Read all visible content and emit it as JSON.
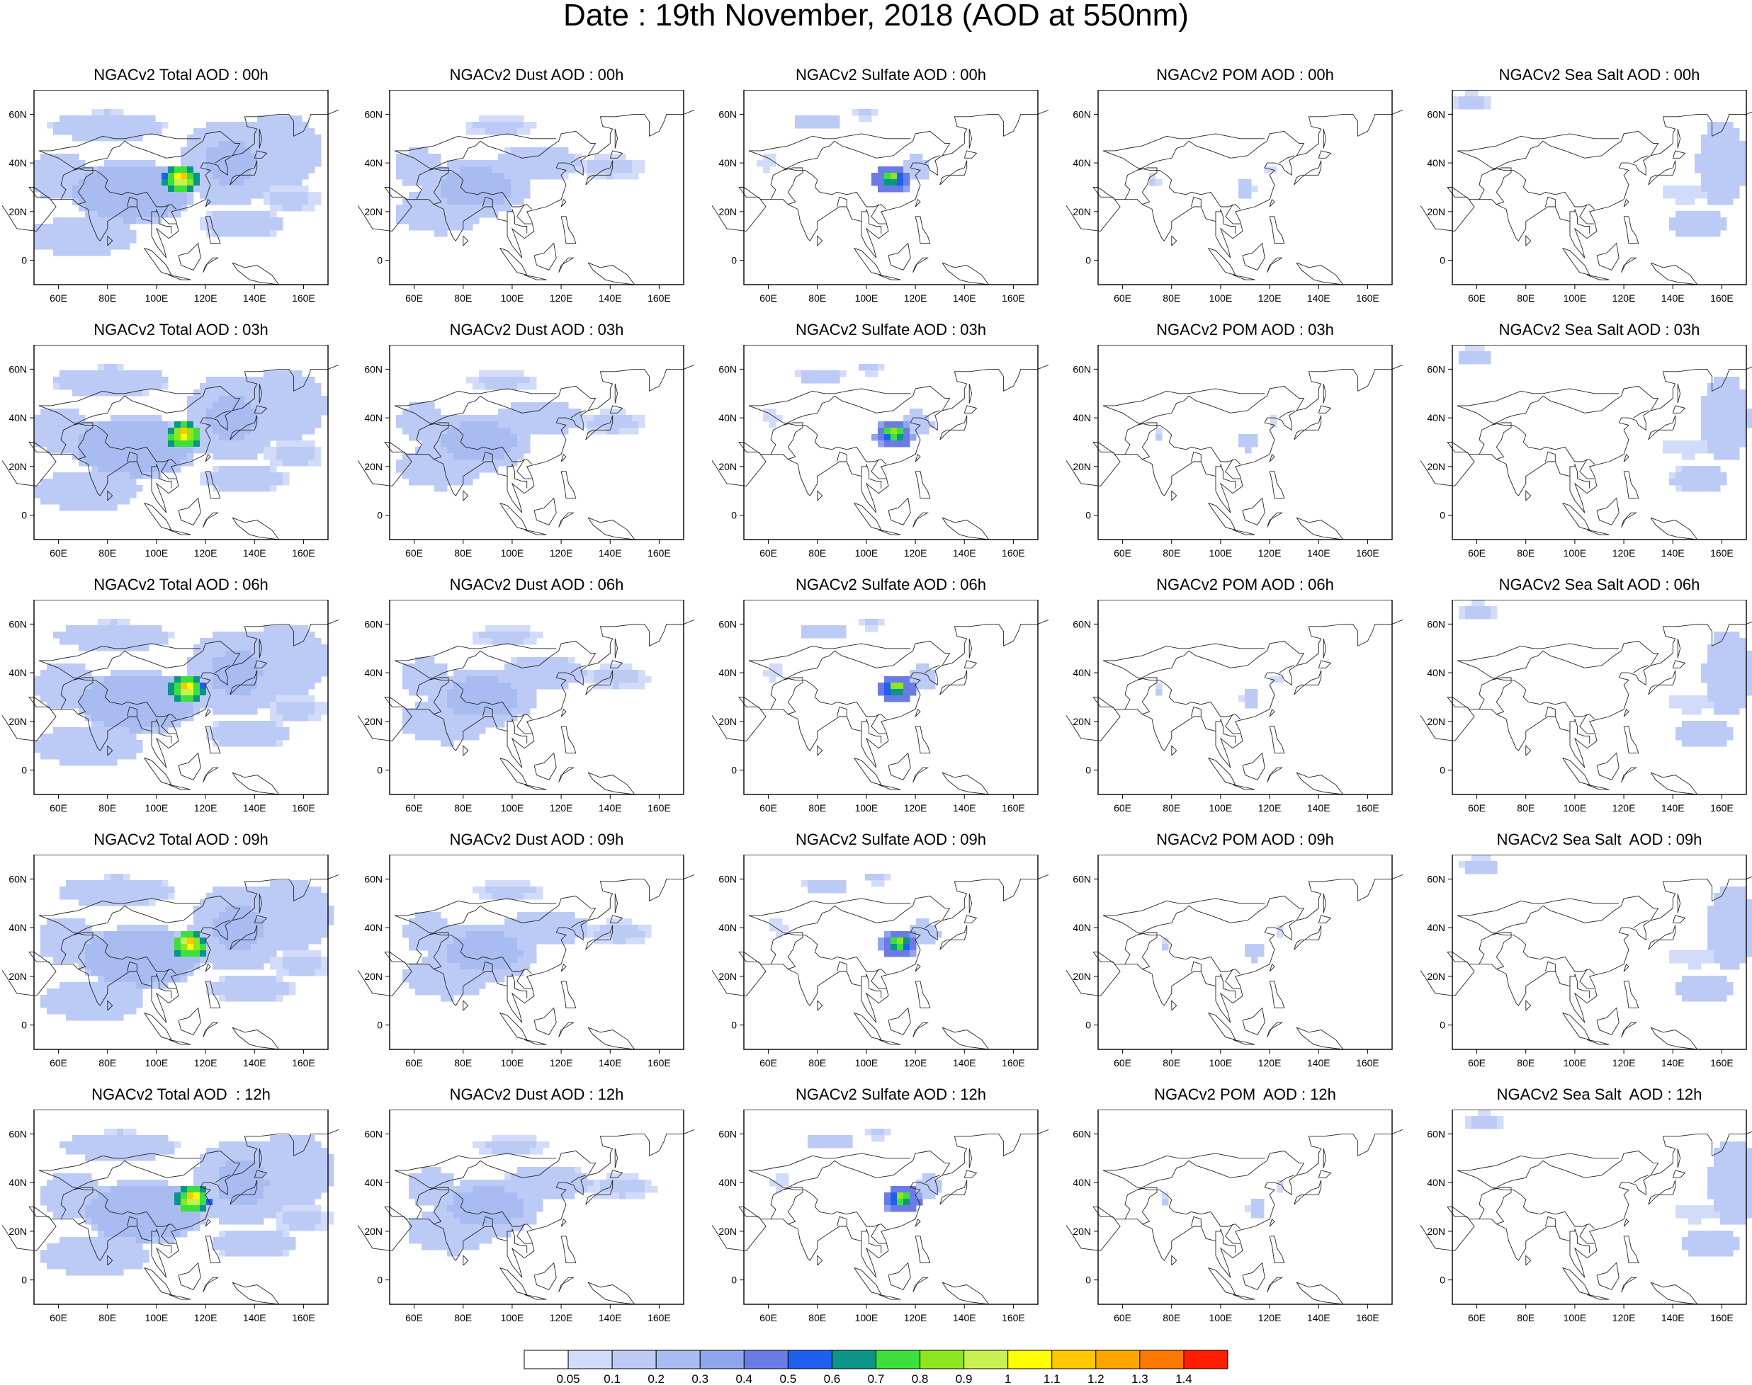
{
  "title": "Date : 19th November, 2018 (AOD at 550nm)",
  "panel_titles": [
    [
      "NGACv2 Total AOD : 00h",
      "NGACv2 Dust AOD : 00h",
      "NGACv2 Sulfate AOD : 00h",
      "NGACv2 POM AOD : 00h",
      "NGACv2 Sea Salt AOD : 00h"
    ],
    [
      "NGACv2 Total AOD : 03h",
      "NGACv2 Dust AOD : 03h",
      "NGACv2 Sulfate AOD : 03h",
      "NGACv2 POM AOD : 03h",
      "NGACv2 Sea Salt AOD : 03h"
    ],
    [
      "NGACv2 Total AOD : 06h",
      "NGACv2 Dust AOD : 06h",
      "NGACv2 Sulfate AOD : 06h",
      "NGACv2 POM AOD : 06h",
      "NGACv2 Sea Salt AOD : 06h"
    ],
    [
      "NGACv2 Total AOD : 09h",
      "NGACv2 Dust AOD : 09h",
      "NGACv2 Sulfate AOD : 09h",
      "NGACv2 POM AOD : 09h",
      "NGACv2 Sea Salt  AOD : 09h"
    ],
    [
      "NGACv2 Total AOD  : 12h",
      "NGACv2 Dust AOD : 12h",
      "NGACv2 Sulfate AOD : 12h",
      "NGACv2 POM  AOD : 12h",
      "NGACv2 Sea Salt  AOD : 12h"
    ]
  ],
  "map": {
    "lon_range": [
      50,
      170
    ],
    "lat_range": [
      -10,
      70
    ],
    "lat_ticks": [
      "60N",
      "40N",
      "20N",
      "0"
    ],
    "lon_ticks": [
      "60E",
      "80E",
      "100E",
      "120E",
      "140E",
      "160E"
    ]
  },
  "colorbar": {
    "labels": [
      "0.05",
      "0.1",
      "0.2",
      "0.3",
      "0.4",
      "0.5",
      "0.6",
      "0.7",
      "0.8",
      "0.9",
      "1",
      "1.1",
      "1.2",
      "1.3",
      "1.4"
    ],
    "colors": [
      "#ffffff",
      "#d2dcfa",
      "#bccbf6",
      "#a9bcf2",
      "#8fa5ee",
      "#6b7be6",
      "#1f5ff0",
      "#0d9488",
      "#3ce03c",
      "#8de61e",
      "#c8f050",
      "#ffff00",
      "#ffc800",
      "#ffa500",
      "#ff7800",
      "#ff1e00"
    ]
  }
}
